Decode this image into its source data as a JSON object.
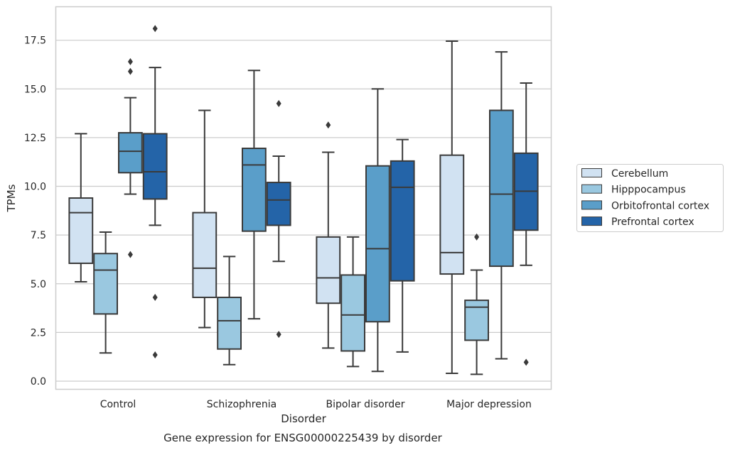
{
  "chart_data": {
    "type": "boxplot",
    "xlabel": "Disorder",
    "ylabel": "TPMs",
    "caption": "Gene expression for ENSG00000225439 by disorder",
    "categories": [
      "Control",
      "Schizophrenia",
      "Bipolar disorder",
      "Major depression"
    ],
    "ylim": [
      -0.4,
      19.2
    ],
    "yticks": [
      0.0,
      2.5,
      5.0,
      7.5,
      10.0,
      12.5,
      15.0,
      17.5
    ],
    "ytick_labels": [
      "0.0",
      "2.5",
      "5.0",
      "7.5",
      "10.0",
      "12.5",
      "15.0",
      "17.5"
    ],
    "grid": "horizontal",
    "legend_position": "right",
    "series": [
      {
        "name": "Cerebellum",
        "color": "#d1e2f2",
        "boxes": [
          {
            "whisker_low": 5.1,
            "q1": 6.05,
            "median": 8.65,
            "q3": 9.4,
            "whisker_high": 12.7,
            "outliers": []
          },
          {
            "whisker_low": 2.75,
            "q1": 4.3,
            "median": 5.8,
            "q3": 8.65,
            "whisker_high": 13.9,
            "outliers": []
          },
          {
            "whisker_low": 1.7,
            "q1": 4.0,
            "median": 5.3,
            "q3": 7.4,
            "whisker_high": 11.75,
            "outliers": [
              13.15
            ]
          },
          {
            "whisker_low": 0.4,
            "q1": 5.5,
            "median": 6.6,
            "q3": 11.6,
            "whisker_high": 17.45,
            "outliers": []
          }
        ]
      },
      {
        "name": "Hipppocampus",
        "color": "#9ac8e0",
        "boxes": [
          {
            "whisker_low": 1.45,
            "q1": 3.45,
            "median": 5.7,
            "q3": 6.55,
            "whisker_high": 7.65,
            "outliers": []
          },
          {
            "whisker_low": 0.85,
            "q1": 1.65,
            "median": 3.1,
            "q3": 4.3,
            "whisker_high": 6.4,
            "outliers": []
          },
          {
            "whisker_low": 0.75,
            "q1": 1.55,
            "median": 3.4,
            "q3": 5.45,
            "whisker_high": 7.4,
            "outliers": []
          },
          {
            "whisker_low": 0.35,
            "q1": 2.1,
            "median": 3.8,
            "q3": 4.15,
            "whisker_high": 5.7,
            "outliers": [
              7.4
            ]
          }
        ]
      },
      {
        "name": "Orbitofrontal cortex",
        "color": "#5a9ec9",
        "boxes": [
          {
            "whisker_low": 9.6,
            "q1": 10.7,
            "median": 11.8,
            "q3": 12.75,
            "whisker_high": 14.55,
            "outliers": [
              6.5,
              15.9,
              16.4
            ]
          },
          {
            "whisker_low": 3.2,
            "q1": 7.7,
            "median": 11.1,
            "q3": 11.95,
            "whisker_high": 15.95,
            "outliers": []
          },
          {
            "whisker_low": 0.5,
            "q1": 3.05,
            "median": 6.8,
            "q3": 11.05,
            "whisker_high": 15.0,
            "outliers": []
          },
          {
            "whisker_low": 1.15,
            "q1": 5.9,
            "median": 9.6,
            "q3": 13.9,
            "whisker_high": 16.9,
            "outliers": []
          }
        ]
      },
      {
        "name": "Prefrontal cortex",
        "color": "#2464a8",
        "boxes": [
          {
            "whisker_low": 8.0,
            "q1": 9.35,
            "median": 10.75,
            "q3": 12.7,
            "whisker_high": 16.1,
            "outliers": [
              1.35,
              4.3,
              18.1
            ]
          },
          {
            "whisker_low": 6.15,
            "q1": 8.0,
            "median": 9.3,
            "q3": 10.2,
            "whisker_high": 11.55,
            "outliers": [
              2.4,
              14.25
            ]
          },
          {
            "whisker_low": 1.5,
            "q1": 5.15,
            "median": 9.95,
            "q3": 11.3,
            "whisker_high": 12.4,
            "outliers": []
          },
          {
            "whisker_low": 5.95,
            "q1": 7.75,
            "median": 9.75,
            "q3": 11.7,
            "whisker_high": 15.3,
            "outliers": [
              0.97
            ]
          }
        ]
      }
    ]
  }
}
